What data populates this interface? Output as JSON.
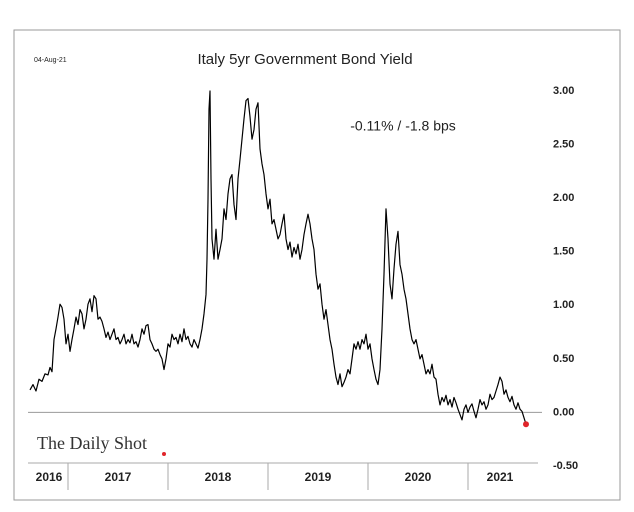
{
  "chart_data": {
    "type": "line",
    "date": "04-Aug-21",
    "title": "Italy 5yr Government Bond Yield",
    "annotation": "-0.11%  /  -1.8 bps",
    "source": "The Daily Shot",
    "color": "#000000",
    "last_point_color": "#e0252b",
    "zero_line": true,
    "xlim": [
      2016.6,
      2021.7
    ],
    "ylim": [
      -0.5,
      3.0
    ],
    "yticks": [
      {
        "value": 3.0,
        "label": "3.00"
      },
      {
        "value": 2.5,
        "label": "2.50"
      },
      {
        "value": 2.0,
        "label": "2.00"
      },
      {
        "value": 1.5,
        "label": "1.50"
      },
      {
        "value": 1.0,
        "label": "1.00"
      },
      {
        "value": 0.5,
        "label": "0.50"
      },
      {
        "value": 0.0,
        "label": "0.00"
      },
      {
        "value": -0.5,
        "label": "-0.50"
      }
    ],
    "xticks": [
      {
        "value": 2016.81,
        "label": "2016"
      },
      {
        "value": 2017.5,
        "label": "2017"
      },
      {
        "value": 2018.5,
        "label": "2018"
      },
      {
        "value": 2019.5,
        "label": "2019"
      },
      {
        "value": 2020.5,
        "label": "2020"
      },
      {
        "value": 2021.32,
        "label": "2021"
      }
    ],
    "year_dividers": [
      2017,
      2018,
      2019,
      2020,
      2021
    ],
    "x": [
      2016.62,
      2016.65,
      2016.68,
      2016.71,
      2016.74,
      2016.77,
      2016.8,
      2016.82,
      2016.84,
      2016.86,
      2016.88,
      2016.9,
      2016.92,
      2016.94,
      2016.96,
      2016.98,
      2017.0,
      2017.02,
      2017.04,
      2017.06,
      2017.08,
      2017.1,
      2017.12,
      2017.14,
      2017.16,
      2017.18,
      2017.2,
      2017.22,
      2017.24,
      2017.26,
      2017.28,
      2017.3,
      2017.32,
      2017.34,
      2017.36,
      2017.38,
      2017.4,
      2017.42,
      2017.44,
      2017.46,
      2017.48,
      2017.5,
      2017.52,
      2017.54,
      2017.56,
      2017.58,
      2017.6,
      2017.62,
      2017.64,
      2017.66,
      2017.68,
      2017.7,
      2017.72,
      2017.74,
      2017.76,
      2017.78,
      2017.8,
      2017.82,
      2017.84,
      2017.86,
      2017.88,
      2017.9,
      2017.92,
      2017.94,
      2017.96,
      2017.98,
      2018.0,
      2018.02,
      2018.04,
      2018.06,
      2018.08,
      2018.1,
      2018.12,
      2018.14,
      2018.16,
      2018.18,
      2018.2,
      2018.22,
      2018.24,
      2018.26,
      2018.28,
      2018.3,
      2018.32,
      2018.34,
      2018.36,
      2018.38,
      2018.39,
      2018.4,
      2018.41,
      2018.42,
      2018.43,
      2018.44,
      2018.46,
      2018.48,
      2018.5,
      2018.52,
      2018.54,
      2018.56,
      2018.58,
      2018.6,
      2018.62,
      2018.64,
      2018.66,
      2018.68,
      2018.7,
      2018.72,
      2018.74,
      2018.76,
      2018.78,
      2018.8,
      2018.82,
      2018.84,
      2018.86,
      2018.88,
      2018.9,
      2018.92,
      2018.94,
      2018.96,
      2018.98,
      2019.0,
      2019.02,
      2019.04,
      2019.06,
      2019.08,
      2019.1,
      2019.12,
      2019.14,
      2019.16,
      2019.18,
      2019.2,
      2019.22,
      2019.24,
      2019.26,
      2019.28,
      2019.3,
      2019.32,
      2019.34,
      2019.36,
      2019.38,
      2019.4,
      2019.42,
      2019.44,
      2019.46,
      2019.48,
      2019.5,
      2019.52,
      2019.54,
      2019.56,
      2019.58,
      2019.6,
      2019.62,
      2019.64,
      2019.66,
      2019.68,
      2019.7,
      2019.72,
      2019.74,
      2019.76,
      2019.78,
      2019.8,
      2019.82,
      2019.84,
      2019.86,
      2019.88,
      2019.9,
      2019.92,
      2019.94,
      2019.96,
      2019.98,
      2020.0,
      2020.02,
      2020.04,
      2020.06,
      2020.08,
      2020.1,
      2020.12,
      2020.14,
      2020.16,
      2020.18,
      2020.2,
      2020.22,
      2020.24,
      2020.26,
      2020.28,
      2020.3,
      2020.32,
      2020.34,
      2020.36,
      2020.38,
      2020.4,
      2020.42,
      2020.44,
      2020.46,
      2020.48,
      2020.5,
      2020.52,
      2020.54,
      2020.56,
      2020.58,
      2020.6,
      2020.62,
      2020.64,
      2020.66,
      2020.68,
      2020.7,
      2020.72,
      2020.74,
      2020.76,
      2020.78,
      2020.8,
      2020.82,
      2020.84,
      2020.86,
      2020.88,
      2020.9,
      2020.92,
      2020.94,
      2020.96,
      2020.98,
      2021.0,
      2021.02,
      2021.04,
      2021.06,
      2021.08,
      2021.1,
      2021.12,
      2021.14,
      2021.16,
      2021.18,
      2021.2,
      2021.22,
      2021.24,
      2021.26,
      2021.28,
      2021.3,
      2021.32,
      2021.34,
      2021.36,
      2021.38,
      2021.4,
      2021.42,
      2021.44,
      2021.46,
      2021.48,
      2021.5,
      2021.52,
      2021.54,
      2021.56,
      2021.58
    ],
    "values": [
      0.21,
      0.26,
      0.2,
      0.31,
      0.29,
      0.36,
      0.35,
      0.42,
      0.38,
      0.68,
      0.78,
      0.89,
      1.01,
      0.98,
      0.87,
      0.64,
      0.73,
      0.57,
      0.68,
      0.78,
      0.89,
      0.82,
      0.96,
      0.92,
      0.78,
      0.87,
      1.01,
      1.06,
      0.94,
      1.09,
      1.06,
      0.87,
      0.89,
      0.85,
      0.78,
      0.7,
      0.75,
      0.68,
      0.73,
      0.78,
      0.68,
      0.7,
      0.64,
      0.68,
      0.73,
      0.64,
      0.68,
      0.65,
      0.73,
      0.64,
      0.66,
      0.61,
      0.68,
      0.78,
      0.73,
      0.81,
      0.82,
      0.68,
      0.64,
      0.59,
      0.57,
      0.59,
      0.54,
      0.5,
      0.4,
      0.5,
      0.64,
      0.61,
      0.73,
      0.68,
      0.7,
      0.64,
      0.73,
      0.66,
      0.78,
      0.68,
      0.71,
      0.64,
      0.61,
      0.68,
      0.64,
      0.6,
      0.68,
      0.78,
      0.92,
      1.1,
      1.43,
      1.99,
      2.83,
      3.0,
      2.18,
      1.62,
      1.43,
      1.71,
      1.43,
      1.52,
      1.62,
      1.9,
      1.8,
      2.04,
      2.18,
      2.22,
      1.94,
      1.8,
      2.18,
      2.36,
      2.55,
      2.74,
      2.91,
      2.93,
      2.76,
      2.55,
      2.64,
      2.83,
      2.89,
      2.46,
      2.32,
      2.22,
      2.04,
      1.9,
      1.99,
      1.76,
      1.8,
      1.71,
      1.62,
      1.66,
      1.76,
      1.85,
      1.62,
      1.52,
      1.59,
      1.45,
      1.54,
      1.48,
      1.57,
      1.43,
      1.52,
      1.66,
      1.76,
      1.85,
      1.76,
      1.62,
      1.52,
      1.29,
      1.15,
      1.2,
      1.01,
      0.87,
      0.96,
      0.82,
      0.68,
      0.59,
      0.45,
      0.33,
      0.26,
      0.36,
      0.24,
      0.28,
      0.33,
      0.4,
      0.36,
      0.5,
      0.64,
      0.59,
      0.66,
      0.59,
      0.68,
      0.64,
      0.73,
      0.59,
      0.64,
      0.5,
      0.4,
      0.31,
      0.26,
      0.4,
      0.78,
      1.29,
      1.9,
      1.62,
      1.2,
      1.06,
      1.34,
      1.57,
      1.69,
      1.38,
      1.29,
      1.15,
      1.06,
      0.92,
      0.78,
      0.68,
      0.64,
      0.68,
      0.59,
      0.5,
      0.54,
      0.45,
      0.36,
      0.4,
      0.36,
      0.45,
      0.33,
      0.31,
      0.17,
      0.07,
      0.14,
      0.1,
      0.16,
      0.07,
      0.12,
      0.05,
      0.14,
      0.09,
      0.03,
      -0.02,
      -0.07,
      0.03,
      0.07,
      0.0,
      0.05,
      0.08,
      0.01,
      -0.05,
      0.03,
      0.12,
      0.07,
      0.1,
      0.03,
      0.07,
      0.17,
      0.12,
      0.14,
      0.2,
      0.26,
      0.33,
      0.29,
      0.17,
      0.21,
      0.14,
      0.1,
      0.15,
      0.07,
      0.03,
      0.09,
      0.03,
      0.01,
      -0.05,
      -0.11
    ]
  }
}
